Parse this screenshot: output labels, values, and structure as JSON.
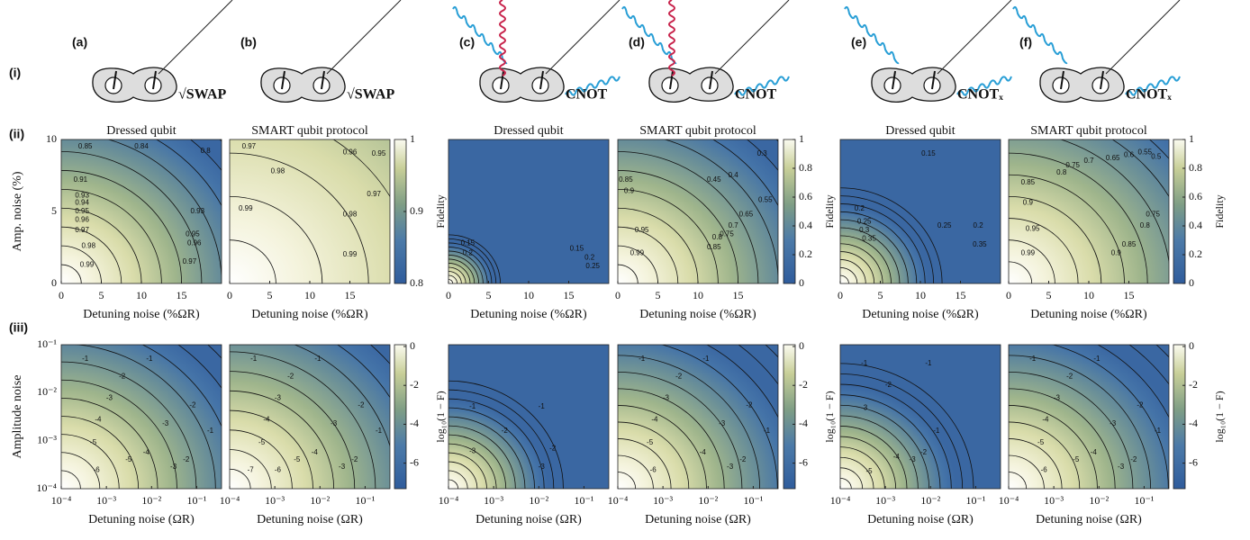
{
  "row_labels": [
    "(i)",
    "(ii)",
    "(iii)"
  ],
  "panels": [
    {
      "label": "(a)",
      "gate": "√SWAP",
      "fidelity_title": "Dressed qubit",
      "fidelity_contours": [
        "0.85",
        "0.84",
        "0.8",
        "0.91",
        "0.93",
        "0.94",
        "0.95",
        "0.96",
        "0.97",
        "0.98",
        "0.99",
        "0.93",
        "0.95",
        "0.96",
        "0.97"
      ],
      "log_contours": [
        "-1",
        "-1",
        "-2",
        "-3",
        "-4",
        "-5",
        "-6",
        "-2",
        "-3",
        "-4",
        "-5",
        "-1",
        "-2",
        "-3"
      ]
    },
    {
      "label": "(b)",
      "gate": "√SWAP",
      "fidelity_title": "SMART qubit protocol",
      "fidelity_contours": [
        "0.97",
        "0.96",
        "0.95",
        "0.98",
        "0.97",
        "0.99",
        "0.98",
        "0.99"
      ],
      "log_contours": [
        "-1",
        "-1",
        "-2",
        "-3",
        "-4",
        "-5",
        "-6",
        "-7",
        "-2",
        "-3",
        "-4",
        "-5",
        "-1",
        "-2",
        "-3"
      ]
    },
    {
      "label": "(c)",
      "gate": "CNOT",
      "fidelity_title": "Dressed qubit",
      "fidelity_contours": [
        "0.15",
        "0.2",
        "0.15",
        "0.2",
        "0.25"
      ],
      "log_contours": [
        "-1",
        "-1",
        "-2",
        "-3",
        "-2",
        "-3"
      ]
    },
    {
      "label": "(d)",
      "gate": "CNOT",
      "fidelity_title": "SMART qubit protocol",
      "fidelity_contours": [
        "0.3",
        "0.4",
        "0.45",
        "0.55",
        "0.65",
        "0.7",
        "0.75",
        "0.85",
        "0.9",
        "0.95",
        "0.99",
        "0.85",
        "0.8"
      ],
      "log_contours": [
        "-1",
        "-1",
        "-2",
        "-3",
        "-4",
        "-5",
        "-6",
        "-2",
        "-3",
        "-4",
        "-1",
        "-2",
        "-3"
      ]
    },
    {
      "label": "(e)",
      "gate": "CNOTₓ",
      "fidelity_title": "Dressed qubit",
      "fidelity_contours": [
        "0.15",
        "0.2",
        "0.2",
        "0.25",
        "0.25",
        "0.3",
        "0.35",
        "0.35"
      ],
      "log_contours": [
        "-1",
        "-1",
        "-2",
        "-3",
        "-1",
        "-2",
        "-3",
        "-4",
        "-5"
      ]
    },
    {
      "label": "(f)",
      "gate": "CNOTₓ",
      "fidelity_title": "SMART qubit protocol",
      "fidelity_contours": [
        "0.5",
        "0.55",
        "0.6",
        "0.65",
        "0.7",
        "0.75",
        "0.8",
        "0.85",
        "0.9",
        "0.95",
        "0.99",
        "0.85",
        "0.9",
        "0.8",
        "0.75"
      ],
      "log_contours": [
        "-1",
        "-1",
        "-2",
        "-3",
        "-4",
        "-5",
        "-6",
        "-2",
        "-3",
        "-4",
        "-5",
        "-1",
        "-2",
        "-3"
      ]
    }
  ],
  "fidelity_plots": {
    "x_label": "Detuning noise (%ΩR)",
    "y_label": "Amp. noise (%)",
    "xticks": [
      "0",
      "5",
      "10",
      "15"
    ],
    "yticks": [
      "10",
      "5",
      "0"
    ]
  },
  "log_plots": {
    "x_label": "Detuning noise (ΩR)",
    "y_label": "Amplitude noise",
    "xticks": [
      "10⁻⁴",
      "10⁻³",
      "10⁻²",
      "10⁻¹"
    ],
    "yticks": [
      "10⁻¹",
      "10⁻²",
      "10⁻³",
      "10⁻⁴"
    ]
  },
  "colorbars": [
    {
      "label": "Fidelity",
      "ticks": [
        "1",
        "0.9",
        "0.8"
      ]
    },
    {
      "label": "Fidelity",
      "ticks": [
        "1",
        "0.8",
        "0.6",
        "0.4",
        "0.2",
        "0"
      ]
    },
    {
      "label": "Fidelity",
      "ticks": [
        "1",
        "0.8",
        "0.6",
        "0.4",
        "0.2",
        "0"
      ]
    }
  ],
  "log_colorbar": {
    "label": "log₁₀(1 − F)",
    "ticks": [
      "0",
      "-2",
      "-4",
      "-6"
    ]
  }
}
